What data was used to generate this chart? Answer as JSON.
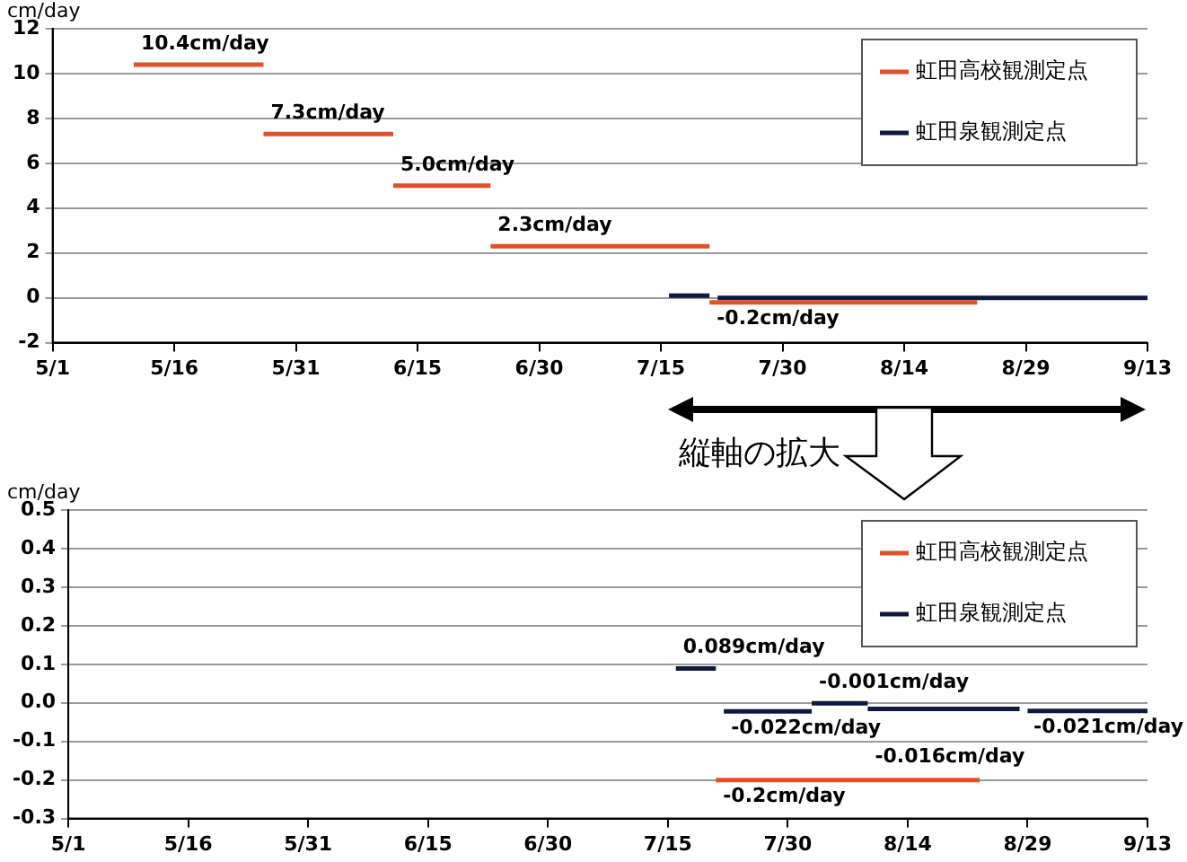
{
  "chart_data": [
    {
      "type": "line",
      "ylabel": "cm/day",
      "xlim": [
        "--05-01",
        "--09-13"
      ],
      "xticks": [
        {
          "value": "--05-01",
          "label": "5/1"
        },
        {
          "value": "--05-16",
          "label": "5/16"
        },
        {
          "value": "--05-31",
          "label": "5/31"
        },
        {
          "value": "--06-15",
          "label": "6/15"
        },
        {
          "value": "--06-30",
          "label": "6/30"
        },
        {
          "value": "--07-15",
          "label": "7/15"
        },
        {
          "value": "--07-30",
          "label": "7/30"
        },
        {
          "value": "--08-14",
          "label": "8/14"
        },
        {
          "value": "--08-29",
          "label": "8/29"
        },
        {
          "value": "--09-13",
          "label": "9/13"
        }
      ],
      "ylim": [
        -2,
        12
      ],
      "yticks": [
        -2,
        0,
        2,
        4,
        6,
        8,
        10,
        12
      ],
      "grid": "y",
      "legend": "top right",
      "annotations": [
        "縦軸の拡大"
      ],
      "series": [
        {
          "name": "虹田高校観測定点",
          "color": "#e0502a",
          "x": [
            "--05-11",
            "--05-27"
          ],
          "values": [
            10.4,
            10.4
          ],
          "value_labels": [
            "10.4cm/day",
            null
          ]
        },
        {
          "color": "#e0502a",
          "x": [
            "--05-27",
            "--06-12"
          ],
          "values": [
            7.3,
            7.3
          ],
          "value_labels": [
            "7.3cm/day",
            null
          ]
        },
        {
          "color": "#e0502a",
          "x": [
            "--06-12",
            "--06-24"
          ],
          "values": [
            5.0,
            5.0
          ],
          "value_labels": [
            "5.0cm/day",
            null
          ]
        },
        {
          "color": "#e0502a",
          "x": [
            "--06-24",
            "--07-21"
          ],
          "values": [
            2.3,
            2.3
          ],
          "value_labels": [
            "2.3cm/day",
            null
          ]
        },
        {
          "color": "#e0502a",
          "x": [
            "--07-21",
            "--08-23"
          ],
          "values": [
            -0.2,
            -0.2
          ],
          "value_labels": [
            "-0.2cm/day",
            null
          ]
        },
        {
          "name": "虹田泉観測定点",
          "color": "#101840",
          "x": [
            "--07-16",
            "--07-21"
          ],
          "values": [
            0.1,
            0.1
          ]
        },
        {
          "color": "#101840",
          "x": [
            "--07-22",
            "--09-13"
          ],
          "values": [
            0,
            0
          ]
        }
      ]
    },
    {
      "type": "line",
      "ylabel": "cm/day",
      "xlim": [
        "--05-01",
        "--09-13"
      ],
      "xticks": [
        {
          "value": "--05-01",
          "label": "5/1"
        },
        {
          "value": "--05-16",
          "label": "5/16"
        },
        {
          "value": "--05-31",
          "label": "5/31"
        },
        {
          "value": "--06-15",
          "label": "6/15"
        },
        {
          "value": "--06-30",
          "label": "6/30"
        },
        {
          "value": "--07-15",
          "label": "7/15"
        },
        {
          "value": "--07-30",
          "label": "7/30"
        },
        {
          "value": "--08-14",
          "label": "8/14"
        },
        {
          "value": "--08-29",
          "label": "8/29"
        },
        {
          "value": "--09-13",
          "label": "9/13"
        }
      ],
      "ylim": [
        -0.3,
        0.5
      ],
      "yticks": [
        {
          "value": -0.3,
          "label": "-0.3"
        },
        {
          "value": -0.2,
          "label": "-0.2"
        },
        {
          "value": -0.1,
          "label": "-0.1"
        },
        {
          "value": 0,
          "label": "0.0"
        },
        {
          "value": 0.1,
          "label": "0.1"
        },
        {
          "value": 0.2,
          "label": "0.2"
        },
        {
          "value": 0.3,
          "label": "0.3"
        },
        {
          "value": 0.4,
          "label": "0.4"
        },
        {
          "value": 0.5,
          "label": "0.5"
        }
      ],
      "grid": "y",
      "legend": "top right",
      "series": [
        {
          "name": "虹田高校観測定点",
          "color": "#e0502a",
          "x": [
            "--07-21",
            "--08-23"
          ],
          "values": [
            -0.2,
            -0.2
          ],
          "value_labels": [
            "-0.2cm/day",
            null
          ]
        },
        {
          "name": "虹田泉観測定点",
          "color": "#101840",
          "x": [
            "--07-16",
            "--07-21"
          ],
          "values": [
            0.089,
            0.089
          ],
          "value_labels": [
            "0.089cm/day",
            null
          ]
        },
        {
          "color": "#101840",
          "x": [
            "--07-22",
            "--08-02"
          ],
          "values": [
            -0.022,
            -0.022
          ],
          "value_labels": [
            "-0.022cm/day",
            null
          ]
        },
        {
          "color": "#101840",
          "x": [
            "--08-02",
            "--08-09"
          ],
          "values": [
            -0.001,
            -0.001
          ],
          "value_labels": [
            "-0.001cm/day",
            null
          ]
        },
        {
          "color": "#101840",
          "x": [
            "--08-09",
            "--08-28"
          ],
          "values": [
            -0.016,
            -0.016
          ],
          "value_labels": [
            "-0.016cm/day",
            null
          ]
        },
        {
          "color": "#101840",
          "x": [
            "--08-29",
            "--09-13"
          ],
          "values": [
            -0.021,
            -0.021
          ],
          "value_labels": [
            "-0.021cm/day",
            null
          ]
        }
      ]
    }
  ]
}
